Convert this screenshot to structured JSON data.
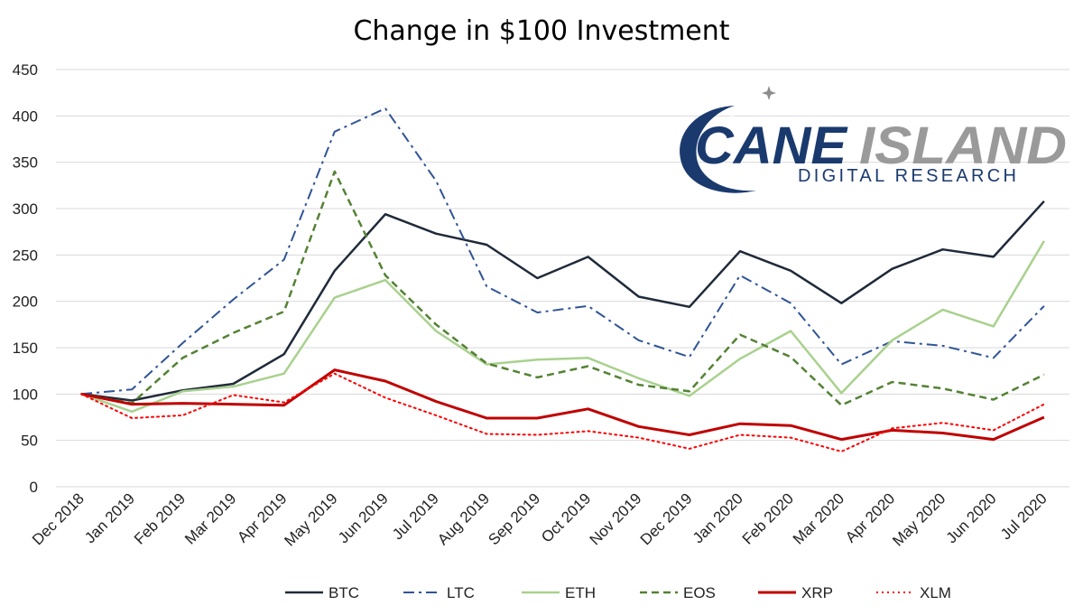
{
  "chart_data": {
    "type": "line",
    "title": "Change in $100 Investment",
    "xlabel": "",
    "ylabel": "",
    "ylim": [
      0,
      450
    ],
    "yticks": [
      0,
      50,
      100,
      150,
      200,
      250,
      300,
      350,
      400,
      450
    ],
    "grid": true,
    "legend_position": "bottom",
    "categories": [
      "Dec 2018",
      "Jan 2019",
      "Feb 2019",
      "Mar 2019",
      "Apr 2019",
      "May 2019",
      "Jun 2019",
      "Jul 2019",
      "Aug 2019",
      "Sep 2019",
      "Oct 2019",
      "Nov 2019",
      "Dec 2019",
      "Jan 2020",
      "Feb 2020",
      "Mar 2020",
      "Apr 2020",
      "May 2020",
      "Jun 2020",
      "Jul 2020"
    ],
    "series": [
      {
        "name": "BTC",
        "color": "#1f2a3a",
        "dash": "solid",
        "width": 2.5,
        "values": [
          100,
          93,
          104,
          111,
          143,
          233,
          294,
          273,
          261,
          225,
          248,
          205,
          194,
          254,
          233,
          198,
          235,
          256,
          248,
          308
        ]
      },
      {
        "name": "LTC",
        "color": "#2f5496",
        "dash": "dashdot",
        "width": 2,
        "values": [
          100,
          105,
          155,
          202,
          245,
          383,
          408,
          330,
          216,
          188,
          195,
          158,
          140,
          228,
          198,
          132,
          157,
          152,
          139,
          195
        ]
      },
      {
        "name": "ETH",
        "color": "#a9d18e",
        "dash": "solid",
        "width": 2.5,
        "values": [
          100,
          81,
          103,
          108,
          122,
          204,
          223,
          168,
          132,
          137,
          139,
          117,
          98,
          138,
          168,
          101,
          158,
          191,
          173,
          265
        ]
      },
      {
        "name": "EOS",
        "color": "#548235",
        "dash": "dash",
        "width": 2.5,
        "values": [
          100,
          90,
          139,
          166,
          189,
          340,
          228,
          175,
          133,
          118,
          130,
          110,
          103,
          164,
          140,
          88,
          113,
          106,
          94,
          121
        ]
      },
      {
        "name": "XRP",
        "color": "#c00000",
        "dash": "solid",
        "width": 3,
        "values": [
          100,
          89,
          90,
          89,
          88,
          126,
          114,
          92,
          74,
          74,
          84,
          65,
          56,
          68,
          66,
          51,
          61,
          58,
          51,
          75
        ]
      },
      {
        "name": "XLM",
        "color": "#ff0000",
        "dash": "dot",
        "width": 2,
        "values": [
          100,
          74,
          77,
          99,
          91,
          122,
          96,
          77,
          57,
          56,
          60,
          53,
          41,
          56,
          53,
          38,
          63,
          69,
          61,
          89
        ]
      }
    ]
  },
  "logo": {
    "name_part1": "CANE",
    "name_part2": "ISLAND",
    "tagline": "DIGITAL RESEARCH",
    "navy": "#1a3a6e",
    "gray": "#8c8c8c"
  }
}
